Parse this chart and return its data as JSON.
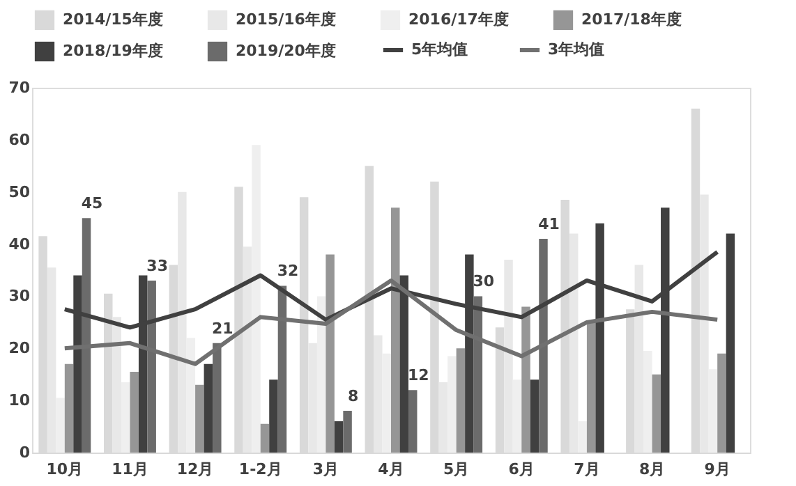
{
  "chart_data": {
    "type": "bar",
    "categories": [
      "10月",
      "11月",
      "12月",
      "1-2月",
      "3月",
      "4月",
      "5月",
      "6月",
      "7月",
      "8月",
      "9月"
    ],
    "series": [
      {
        "name": "2014/15年度",
        "color": "#d9d9d9",
        "values": [
          41.5,
          30.5,
          36,
          51,
          49,
          55,
          52,
          24,
          48.5,
          27.5,
          66
        ]
      },
      {
        "name": "2015/16年度",
        "color": "#e8e8e8",
        "values": [
          35.5,
          26,
          50,
          39.5,
          21,
          22.5,
          13.5,
          37,
          42,
          36,
          49.5
        ]
      },
      {
        "name": "2016/17年度",
        "color": "#efefef",
        "values": [
          10.5,
          13.5,
          22,
          59,
          30,
          19,
          18.5,
          14,
          6,
          19.5,
          16
        ]
      },
      {
        "name": "2017/18年度",
        "color": "#969696",
        "values": [
          17,
          15.5,
          13,
          5.5,
          38,
          47,
          20,
          28,
          25,
          15,
          19
        ]
      },
      {
        "name": "2018/19年度",
        "color": "#404040",
        "values": [
          34,
          34,
          17,
          14,
          6,
          34,
          38,
          14,
          44,
          47,
          42
        ]
      },
      {
        "name": "2019/20年度",
        "color": "#6b6b6b",
        "values": [
          45,
          33,
          21,
          32,
          8,
          12,
          30,
          41,
          null,
          null,
          null
        ],
        "value_labels": [
          "45",
          "33",
          "21",
          "32",
          "8",
          "12",
          "30",
          "41",
          null,
          null,
          null
        ]
      },
      {
        "name": "5年均值",
        "type": "line",
        "color": "#404040",
        "values": [
          27.5,
          24,
          27.5,
          34,
          25.5,
          31.5,
          28.5,
          26,
          33,
          29,
          38.5
        ]
      },
      {
        "name": "3年均值",
        "type": "line",
        "color": "#707070",
        "values": [
          20,
          21,
          17,
          26,
          24.7,
          33,
          23.5,
          18.5,
          25,
          27,
          25.5
        ]
      }
    ],
    "ylim": [
      0,
      70
    ],
    "yticks": [
      0,
      10,
      20,
      30,
      40,
      50,
      60,
      70
    ],
    "grid": false,
    "legend": "top"
  }
}
